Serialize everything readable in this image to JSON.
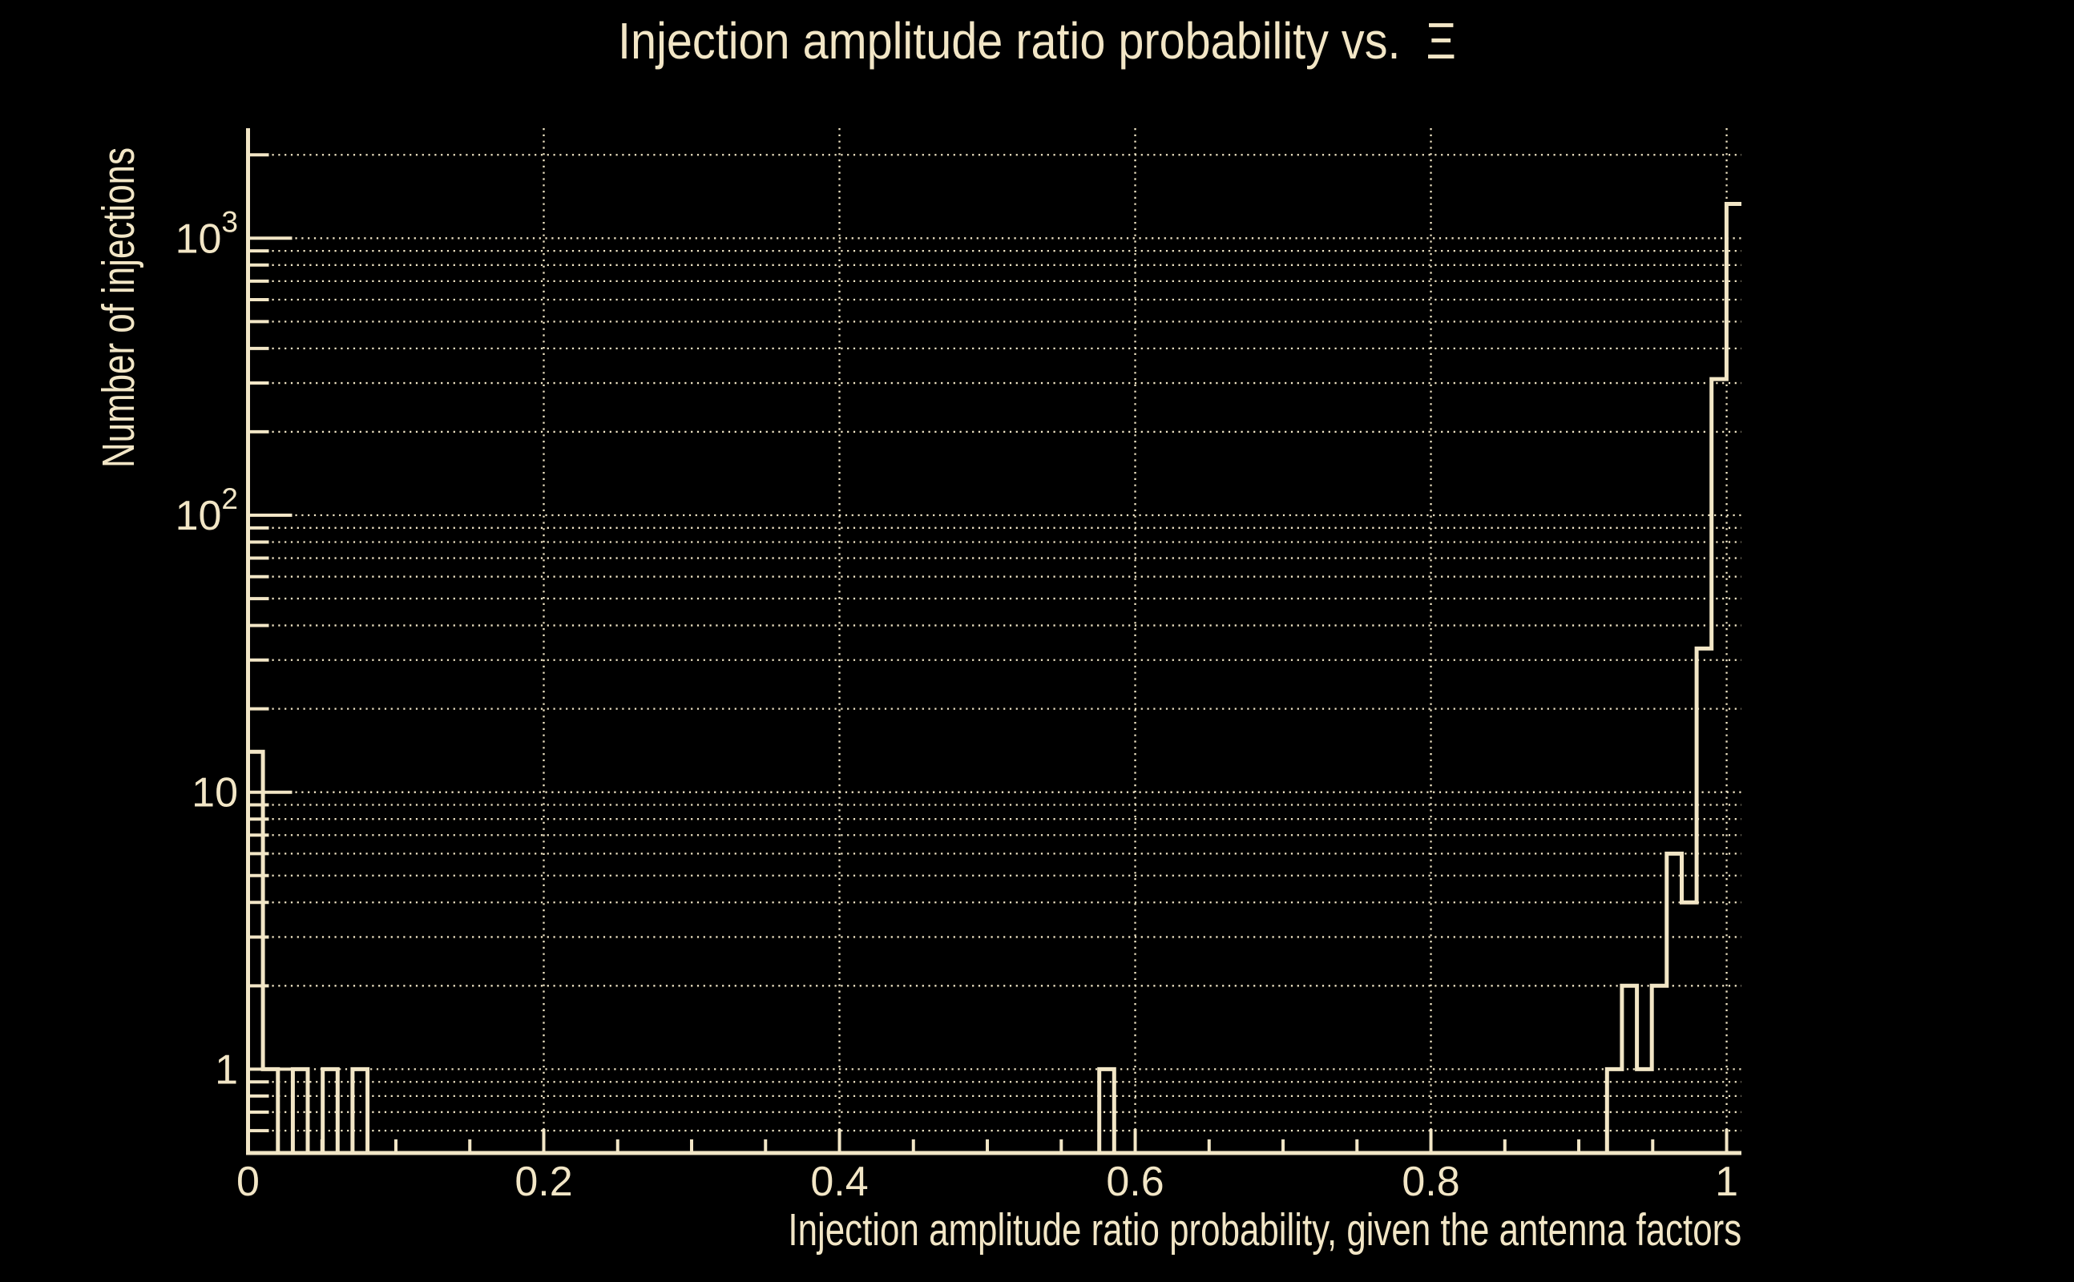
{
  "colors": {
    "background": "#000000",
    "foreground": "#f2e6c6"
  },
  "header": {
    "title": "Injection amplitude ratio probability vs.  Ξ"
  },
  "chart_data": {
    "type": "bar",
    "subtype": "step-outline-histogram",
    "title": "Injection amplitude ratio probability vs.  Ξ",
    "xlabel": "Injection amplitude ratio probability, given the antenna factors",
    "ylabel": "Number of injections",
    "x_range": [
      0,
      1.01
    ],
    "y_scale": "log",
    "y_range": [
      0.5,
      2500
    ],
    "grid": "dotted log grid on both axes",
    "legend_position": "none",
    "n_bins": 100,
    "bin_width": 0.0101,
    "bins_nonzero": [
      {
        "x_start": 0.0,
        "x_end": 0.0101,
        "count": 14
      },
      {
        "x_start": 0.0101,
        "x_end": 0.0202,
        "count": 1
      },
      {
        "x_start": 0.0303,
        "x_end": 0.0404,
        "count": 1
      },
      {
        "x_start": 0.0505,
        "x_end": 0.0606,
        "count": 1
      },
      {
        "x_start": 0.0707,
        "x_end": 0.0808,
        "count": 1
      },
      {
        "x_start": 0.5757,
        "x_end": 0.5858,
        "count": 1
      },
      {
        "x_start": 0.9191,
        "x_end": 0.9292,
        "count": 1
      },
      {
        "x_start": 0.9292,
        "x_end": 0.9393,
        "count": 2
      },
      {
        "x_start": 0.9393,
        "x_end": 0.9494,
        "count": 1
      },
      {
        "x_start": 0.9494,
        "x_end": 0.9595,
        "count": 2
      },
      {
        "x_start": 0.9595,
        "x_end": 0.9696,
        "count": 6
      },
      {
        "x_start": 0.9696,
        "x_end": 0.9797,
        "count": 4
      },
      {
        "x_start": 0.9797,
        "x_end": 0.9898,
        "count": 33
      },
      {
        "x_start": 0.9898,
        "x_end": 0.9999,
        "count": 310
      },
      {
        "x_start": 0.9999,
        "x_end": 1.01,
        "count": 1330
      }
    ],
    "x_ticks": [
      {
        "value": 0,
        "label": "0"
      },
      {
        "value": 0.2,
        "label": "0.2"
      },
      {
        "value": 0.4,
        "label": "0.4"
      },
      {
        "value": 0.6,
        "label": "0.6"
      },
      {
        "value": 0.8,
        "label": "0.8"
      },
      {
        "value": 1,
        "label": "1"
      }
    ],
    "y_ticks": [
      {
        "value": 1,
        "base": "1",
        "exponent": ""
      },
      {
        "value": 10,
        "base": "10",
        "exponent": ""
      },
      {
        "value": 100,
        "base": "10",
        "exponent": "2"
      },
      {
        "value": 1000,
        "base": "10",
        "exponent": "3"
      }
    ]
  }
}
